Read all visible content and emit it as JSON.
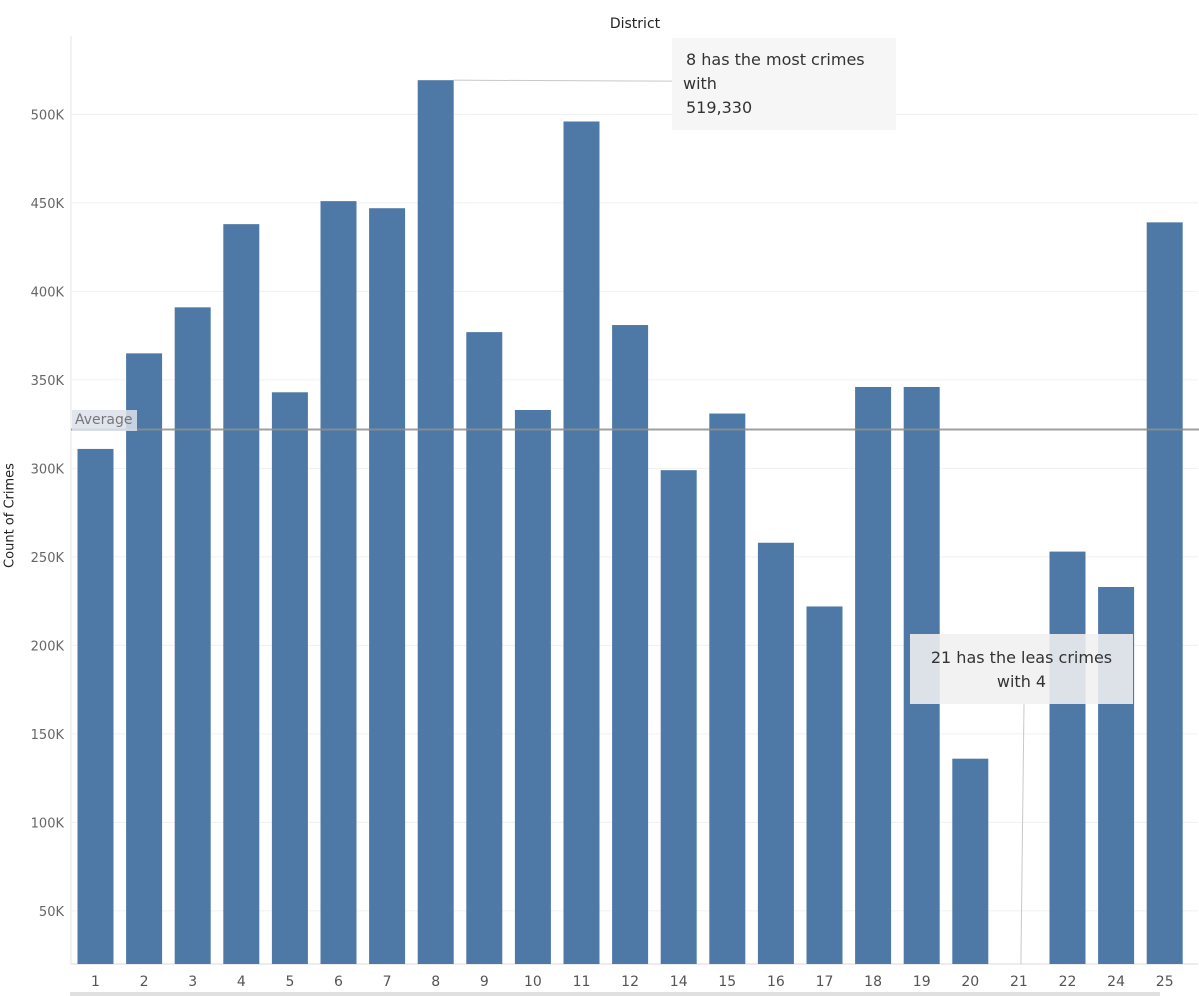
{
  "chart_data": {
    "type": "bar",
    "title": "District",
    "xlabel": "",
    "ylabel": "Count of Crimes",
    "categories": [
      "1",
      "2",
      "3",
      "4",
      "5",
      "6",
      "7",
      "8",
      "9",
      "10",
      "11",
      "12",
      "14",
      "15",
      "16",
      "17",
      "18",
      "19",
      "20",
      "21",
      "22",
      "24",
      "25"
    ],
    "values": [
      311000,
      365000,
      391000,
      438000,
      343000,
      451000,
      447000,
      519330,
      377000,
      333000,
      496000,
      381000,
      299000,
      331000,
      258000,
      222000,
      346000,
      346000,
      136000,
      4,
      253000,
      233000,
      439000
    ],
    "ylim": [
      20000,
      530000
    ],
    "yticks": [
      50000,
      100000,
      150000,
      200000,
      250000,
      300000,
      350000,
      400000,
      450000,
      500000
    ],
    "ytick_labels": [
      "50K",
      "100K",
      "150K",
      "200K",
      "250K",
      "300K",
      "350K",
      "400K",
      "450K",
      "500K"
    ],
    "bar_color": "#4e79a7",
    "gridlines": true,
    "reference_line": {
      "label": "Average",
      "value": 322000
    },
    "annotations": [
      {
        "category": "8",
        "lines": [
          "8 has the most crimes",
          "with",
          "519,330"
        ]
      },
      {
        "category": "21",
        "lines": [
          "21 has the leas crimes",
          "with  4"
        ]
      }
    ]
  }
}
